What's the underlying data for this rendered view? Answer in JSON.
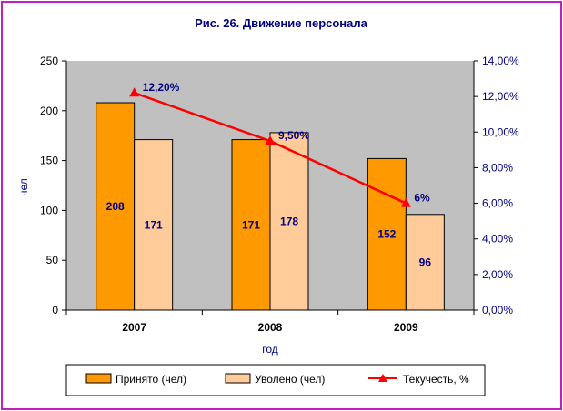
{
  "chart_data": {
    "type": "bar",
    "title": "Рис. 26.  Движение персонала",
    "xlabel": "год",
    "ylabel": "чел",
    "categories": [
      "2007",
      "2008",
      "2009"
    ],
    "ylim": [
      0,
      250
    ],
    "y_ticks": [
      "0",
      "50",
      "100",
      "150",
      "200",
      "250"
    ],
    "y2lim": [
      0,
      14
    ],
    "y2_ticks": [
      "0,00%",
      "2,00%",
      "4,00%",
      "6,00%",
      "8,00%",
      "10,00%",
      "12,00%",
      "14,00%"
    ],
    "series": [
      {
        "name": "Принято (чел)",
        "kind": "bar",
        "values": [
          208,
          171,
          152
        ],
        "labels": [
          "208",
          "171",
          "152"
        ],
        "color": "#ff9900"
      },
      {
        "name": "Уволено (чел)",
        "kind": "bar",
        "values": [
          171,
          178,
          96
        ],
        "labels": [
          "171",
          "178",
          "96"
        ],
        "color": "#ffcc99"
      },
      {
        "name": "Текучесть, %",
        "kind": "line",
        "axis": "right",
        "values": [
          12.2,
          9.5,
          6
        ],
        "labels": [
          "12,20%",
          "9,50%",
          "6%"
        ],
        "color": "#ff0000"
      }
    ],
    "plot_background": "#c0c0c0",
    "grid": false,
    "legend": "bottom"
  }
}
